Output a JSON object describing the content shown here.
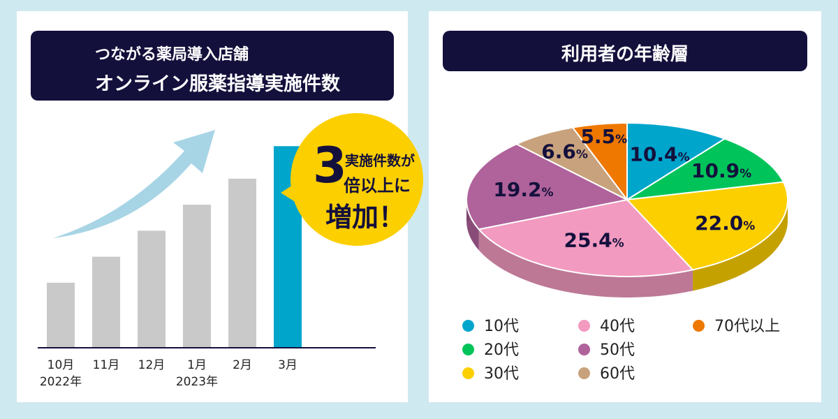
{
  "left": {
    "title_line1": "つながる薬局導入店舗",
    "title_line2": "オンライン服薬指導実施件数"
  },
  "callout": {
    "number": "3",
    "line1": "実施件数が",
    "line2": "倍以上に",
    "line3": "増加！"
  },
  "right": {
    "title": "利用者の年齢層"
  },
  "colors": {
    "bar_default": "#c9c9c9",
    "bar_highlight": "#00a5cc",
    "arrow": "#a8d5e6",
    "navy": "#14103c",
    "callout": "#fccf00"
  },
  "chart_data": [
    {
      "type": "bar",
      "categories": [
        "10月",
        "11月",
        "12月",
        "1月",
        "2月",
        "3月"
      ],
      "category_sublabels": [
        "2022年",
        "",
        "",
        "2023年",
        "",
        ""
      ],
      "values": [
        1.0,
        1.4,
        1.8,
        2.2,
        2.6,
        3.1
      ],
      "highlight_index": 5,
      "title": "つながる薬局導入店舗 オンライン服薬指導実施件数",
      "xlabel": "",
      "ylabel": "",
      "ylim": [
        0,
        3.2
      ],
      "grid": false
    },
    {
      "type": "pie",
      "title": "利用者の年齢層",
      "labels": [
        "10代",
        "20代",
        "30代",
        "40代",
        "50代",
        "60代",
        "70代以上"
      ],
      "values": [
        10.4,
        10.9,
        22.0,
        25.4,
        19.2,
        6.6,
        5.5
      ],
      "value_labels": [
        "10.4",
        "10.9",
        "22.0",
        "25.4",
        "19.2",
        "6.6",
        "5.5"
      ],
      "unit": "%",
      "colors": [
        "#00a5cc",
        "#00c45a",
        "#fccf00",
        "#f29ac0",
        "#b0629b",
        "#c8a27c",
        "#ee7800"
      ],
      "legend_position": "bottom"
    }
  ]
}
